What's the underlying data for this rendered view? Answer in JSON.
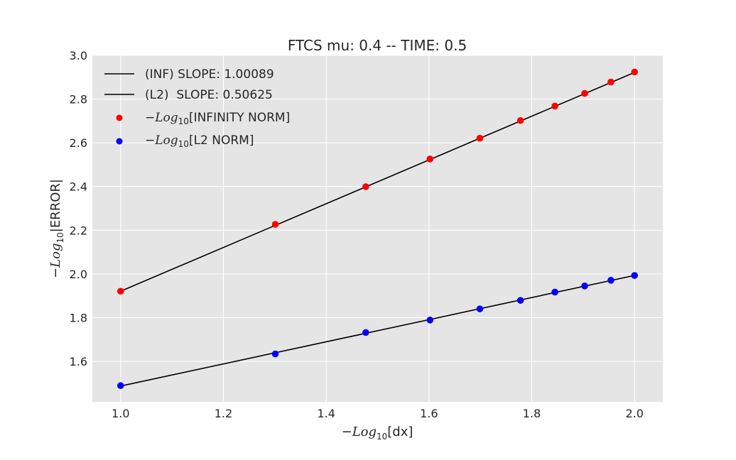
{
  "chart_data": {
    "type": "scatter",
    "title": "FTCS mu: 0.4 -- TIME: 0.5",
    "xlabel": {
      "prefix": "−",
      "func": "Log",
      "sub": "10",
      "arg": "[dx]"
    },
    "ylabel": {
      "prefix": "−",
      "func": "Log",
      "sub": "10",
      "arg": "|ERROR|"
    },
    "xlim": [
      0.945,
      2.055
    ],
    "ylim": [
      1.415,
      3.0
    ],
    "xticks": [
      1.0,
      1.2,
      1.4,
      1.6,
      1.8,
      2.0
    ],
    "xtick_labels": [
      "1.0",
      "1.2",
      "1.4",
      "1.6",
      "1.8",
      "2.0"
    ],
    "yticks": [
      1.6,
      1.8,
      2.0,
      2.2,
      2.4,
      2.6,
      2.8,
      3.0
    ],
    "ytick_labels": [
      "1.6",
      "1.8",
      "2.0",
      "2.2",
      "2.4",
      "2.6",
      "2.8",
      "3.0"
    ],
    "grid": true,
    "legend_position": "top-left",
    "x": [
      1.0,
      1.301,
      1.477,
      1.602,
      1.699,
      1.778,
      1.845,
      1.903,
      1.954,
      2.0
    ],
    "series": [
      {
        "name": "−Log₁₀[INFINITY NORM]",
        "legend_prefix": "−",
        "legend_func": "Log",
        "legend_sub": "10",
        "legend_arg": "[INFINITY NORM]",
        "color": "#ff0000",
        "values": [
          1.921,
          2.227,
          2.399,
          2.526,
          2.621,
          2.702,
          2.768,
          2.826,
          2.878,
          2.924
        ]
      },
      {
        "name": "−Log₁₀[L2 NORM]",
        "legend_prefix": "−",
        "legend_func": "Log",
        "legend_sub": "10",
        "legend_arg": "[L2 NORM]",
        "color": "#0000ff",
        "values": [
          1.489,
          1.634,
          1.732,
          1.789,
          1.84,
          1.879,
          1.917,
          1.945,
          1.971,
          1.993
        ]
      }
    ],
    "fit_lines": [
      {
        "label": "(INF) SLOPE: 1.00089",
        "slope": 1.00089,
        "y_at_x1": 1.921,
        "color": "#000000"
      },
      {
        "label": "(L2)  SLOPE: 0.50625",
        "slope": 0.50625,
        "y_at_x1": 1.487,
        "color": "#000000"
      }
    ],
    "background_color": "#e5e5e5",
    "grid_color": "#ffffff"
  }
}
